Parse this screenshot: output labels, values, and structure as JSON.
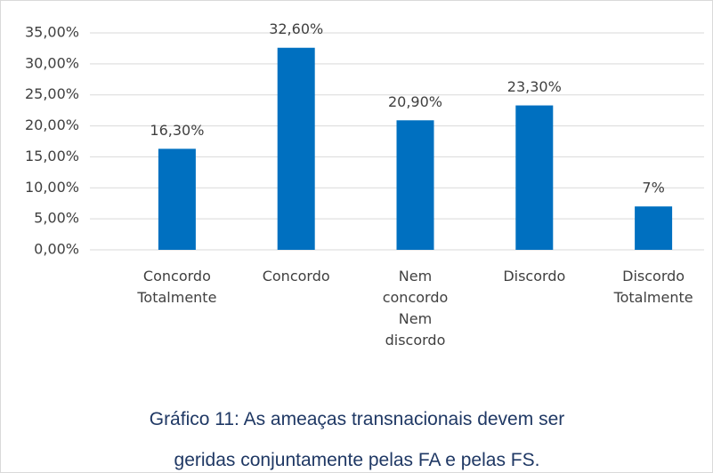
{
  "chart_data": {
    "type": "bar",
    "categories": [
      "Concordo Totalmente",
      "Concordo",
      "Nem concordo Nem discordo",
      "Discordo",
      "Discordo Totalmente"
    ],
    "values": [
      16.3,
      32.6,
      20.9,
      23.3,
      7
    ],
    "value_labels": [
      "16,30%",
      "32,60%",
      "20,90%",
      "23,30%",
      "7%"
    ],
    "color": "#0070c0",
    "ylim": [
      0,
      35
    ],
    "yticks": [
      {
        "value": 0,
        "label": "0,00%"
      },
      {
        "value": 5,
        "label": "5,00%"
      },
      {
        "value": 10,
        "label": "10,00%"
      },
      {
        "value": 15,
        "label": "15,00%"
      },
      {
        "value": 20,
        "label": "20,00%"
      },
      {
        "value": 25,
        "label": "25,00%"
      },
      {
        "value": 30,
        "label": "30,00%"
      },
      {
        "value": 35,
        "label": "35,00%"
      }
    ],
    "grid": true,
    "caption": "Gráfico 11: As ameaças transnacionais devem ser geridas conjuntamente pelas FA e pelas FS."
  }
}
